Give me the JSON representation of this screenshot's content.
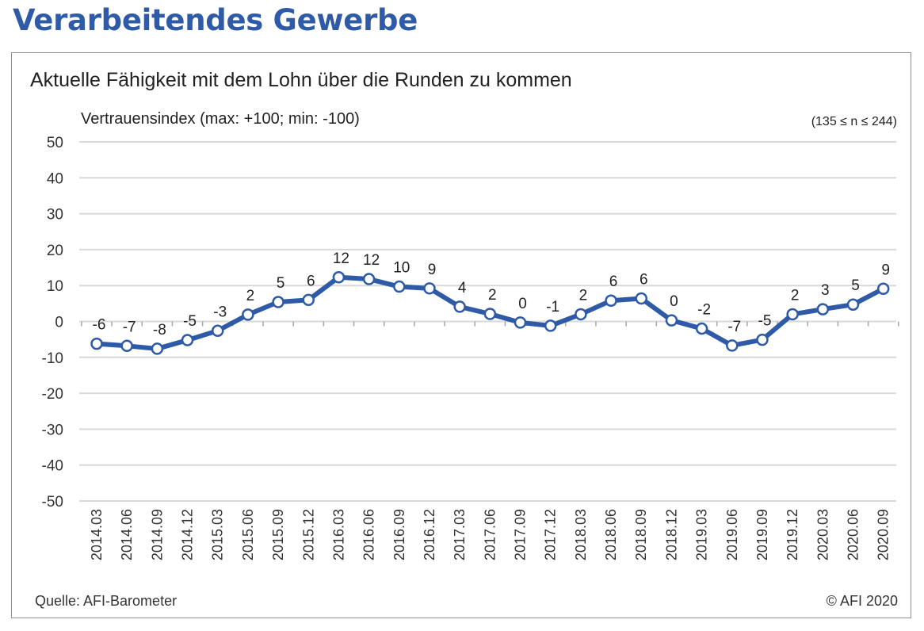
{
  "page": {
    "heading": "Verarbeitendes Gewerbe",
    "source": "Quelle: AFI-Barometer",
    "copyright": "© AFI 2020"
  },
  "colors": {
    "heading": "#2f5aa8",
    "line": "#2f5aa8",
    "marker_fill": "#ffffff",
    "grid": "#d9d9d9"
  },
  "chart_data": {
    "type": "line",
    "title": "Aktuelle Fähigkeit mit dem Lohn über die Runden zu kommen",
    "ylabel": "Vertrauensindex (max: +100; min: -100)",
    "note": "(135 ≤ n ≤ 244)",
    "ylim": [
      -50,
      50
    ],
    "yticks": [
      50,
      40,
      30,
      20,
      10,
      0,
      -10,
      -20,
      -30,
      -40,
      -50
    ],
    "grid": true,
    "categories": [
      "2014.03",
      "2014.06",
      "2014.09",
      "2014.12",
      "2015.03",
      "2015.06",
      "2015.09",
      "2015.12",
      "2016.03",
      "2016.06",
      "2016.09",
      "2016.12",
      "2017.03",
      "2017.06",
      "2017.09",
      "2017.12",
      "2018.03",
      "2018.06",
      "2018.09",
      "2018.12",
      "2019.03",
      "2019.06",
      "2019.09",
      "2019.12",
      "2020.03",
      "2020.06",
      "2020.09"
    ],
    "values": [
      -6.2,
      -6.8,
      -7.6,
      -5.2,
      -2.6,
      1.9,
      5.4,
      6.0,
      12.3,
      11.8,
      9.7,
      9.2,
      4.1,
      2.1,
      -0.3,
      -1.2,
      2.0,
      5.8,
      6.4,
      0.3,
      -2.0,
      -6.7,
      -5.1,
      2.0,
      3.4,
      4.7,
      9.1
    ],
    "data_labels": [
      "-6",
      "-7",
      "-8",
      "-5",
      "-3",
      "2",
      "5",
      "6",
      "12",
      "12",
      "10",
      "9",
      "4",
      "2",
      "0",
      "-1",
      "2",
      "6",
      "6",
      "0",
      "-2",
      "-7",
      "-5",
      "2",
      "3",
      "5",
      "9"
    ]
  }
}
